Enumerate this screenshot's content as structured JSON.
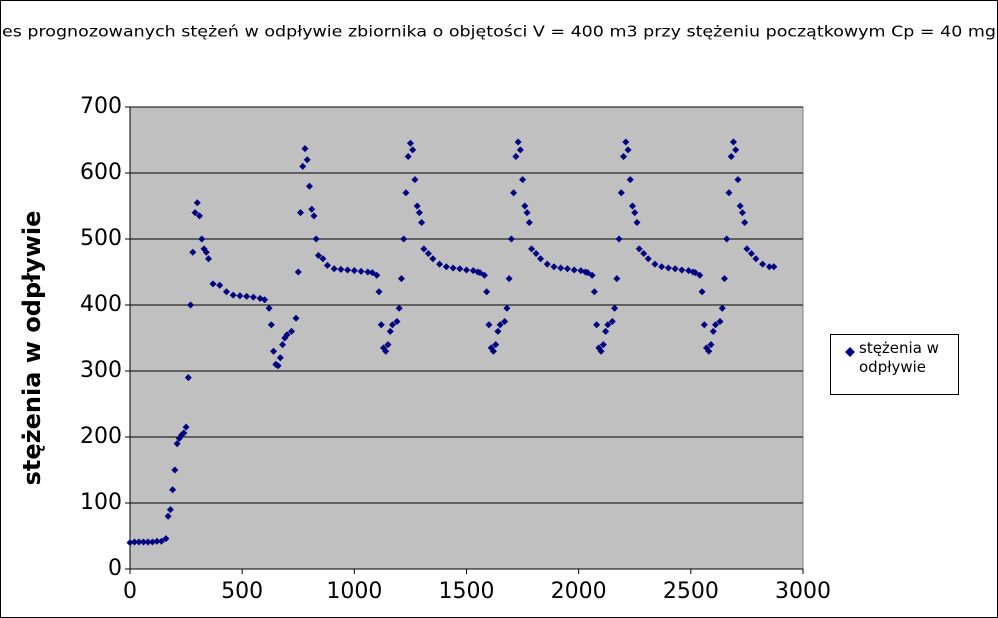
{
  "chart_data": {
    "type": "scatter",
    "title": "es prognozowanych stężeń w odpływie zbiornika o objętości V = 400 m3 przy stężeniu początkowym Cp = 40 mg",
    "y_label": "stężenia w odpływie",
    "xlim": [
      0,
      3000
    ],
    "xticks": [
      0,
      500,
      1000,
      1500,
      2000,
      2500,
      3000
    ],
    "ylim": [
      0,
      700
    ],
    "yticks": [
      0,
      100,
      200,
      300,
      400,
      500,
      600,
      700
    ],
    "grid": true,
    "legend": "right",
    "series": [
      {
        "name": "stężenia w odpływie",
        "color": "#000080",
        "x": [
          0,
          20,
          40,
          60,
          80,
          100,
          120,
          140,
          160,
          170,
          180,
          190,
          200,
          210,
          220,
          230,
          240,
          250,
          260,
          270,
          280,
          290,
          300,
          310,
          320,
          330,
          340,
          350,
          370,
          400,
          430,
          460,
          490,
          520,
          550,
          580,
          600,
          620,
          630,
          640,
          650,
          660,
          670,
          680,
          690,
          700,
          720,
          740,
          750,
          760,
          770,
          780,
          790,
          800,
          810,
          820,
          830,
          840,
          860,
          880,
          910,
          940,
          970,
          1000,
          1030,
          1060,
          1080,
          1100,
          1110,
          1120,
          1130,
          1140,
          1150,
          1160,
          1170,
          1190,
          1200,
          1210,
          1220,
          1230,
          1240,
          1250,
          1260,
          1270,
          1280,
          1290,
          1300,
          1310,
          1330,
          1350,
          1380,
          1410,
          1440,
          1470,
          1500,
          1530,
          1550,
          1560,
          1580,
          1590,
          1600,
          1610,
          1620,
          1630,
          1640,
          1650,
          1670,
          1680,
          1690,
          1700,
          1710,
          1720,
          1730,
          1740,
          1750,
          1760,
          1770,
          1780,
          1790,
          1810,
          1830,
          1860,
          1890,
          1920,
          1950,
          1980,
          2010,
          2030,
          2040,
          2060,
          2070,
          2080,
          2090,
          2100,
          2110,
          2120,
          2130,
          2150,
          2160,
          2170,
          2180,
          2190,
          2200,
          2210,
          2220,
          2230,
          2240,
          2250,
          2260,
          2270,
          2290,
          2310,
          2340,
          2370,
          2400,
          2430,
          2460,
          2490,
          2510,
          2520,
          2540,
          2550,
          2560,
          2570,
          2580,
          2590,
          2600,
          2610,
          2630,
          2640,
          2650,
          2660,
          2670,
          2680,
          2690,
          2700,
          2710,
          2720,
          2730,
          2740,
          2750,
          2770,
          2790,
          2820,
          2850,
          2870
        ],
        "values": [
          40,
          41,
          41,
          41,
          41,
          41,
          42,
          42,
          46,
          80,
          90,
          120,
          150,
          190,
          198,
          203,
          206,
          215,
          290,
          400,
          480,
          540,
          555,
          535,
          500,
          485,
          480,
          470,
          432,
          430,
          420,
          415,
          414,
          413,
          412,
          410,
          408,
          395,
          370,
          330,
          310,
          308,
          320,
          340,
          350,
          355,
          360,
          380,
          450,
          540,
          610,
          637,
          620,
          580,
          545,
          535,
          500,
          475,
          470,
          460,
          455,
          454,
          453,
          452,
          451,
          450,
          449,
          445,
          420,
          370,
          335,
          330,
          340,
          360,
          370,
          375,
          395,
          440,
          500,
          570,
          625,
          645,
          635,
          590,
          550,
          540,
          525,
          485,
          478,
          470,
          462,
          458,
          456,
          455,
          453,
          452,
          450,
          449,
          445,
          420,
          370,
          335,
          330,
          340,
          360,
          370,
          375,
          395,
          440,
          500,
          570,
          625,
          647,
          635,
          590,
          550,
          540,
          525,
          485,
          478,
          470,
          462,
          458,
          456,
          455,
          453,
          452,
          450,
          449,
          445,
          420,
          370,
          335,
          330,
          340,
          360,
          370,
          375,
          395,
          440,
          500,
          570,
          625,
          647,
          635,
          590,
          550,
          540,
          525,
          485,
          478,
          470,
          462,
          458,
          456,
          455,
          453,
          452,
          450,
          449,
          445,
          420,
          370,
          335,
          330,
          340,
          360,
          370,
          375,
          395,
          440,
          500,
          570,
          625,
          647,
          635,
          590,
          550,
          540,
          525,
          485,
          478,
          470,
          462,
          458,
          458
        ]
      }
    ]
  }
}
